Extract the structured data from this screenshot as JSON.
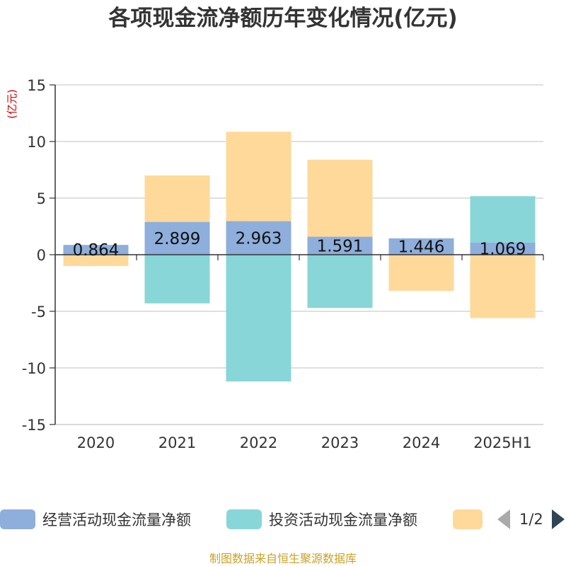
{
  "title": "各项现金流净额历年变化情况(亿元)",
  "source": "制图数据来自恒生聚源数据库",
  "legend_pager": "1/2",
  "colors": {
    "series": [
      "#8eaedc",
      "#88d6d8",
      "#ffd99a"
    ]
  },
  "chart_data": {
    "type": "bar",
    "stacked": true,
    "ylabel": "(亿元)",
    "ylim": [
      -15,
      15
    ],
    "yticks": [
      15,
      10,
      5,
      0,
      -5,
      -10,
      -15
    ],
    "categories": [
      "2020",
      "2021",
      "2022",
      "2023",
      "2024",
      "2025H1"
    ],
    "series": [
      {
        "name": "经营活动现金流量净额",
        "values": [
          0.864,
          2.899,
          2.963,
          1.591,
          1.446,
          1.069
        ],
        "labels": [
          "0.864",
          "2.899",
          "2.963",
          "1.591",
          "1.446",
          "1.069"
        ]
      },
      {
        "name": "投资活动现金流量净额",
        "values": [
          0.0,
          -4.3,
          -11.2,
          -4.7,
          0.0,
          4.1
        ]
      },
      {
        "name": "",
        "values": [
          -1.0,
          4.1,
          7.9,
          6.8,
          -3.2,
          -5.6
        ]
      }
    ],
    "grid": true,
    "legend_position": "bottom"
  }
}
